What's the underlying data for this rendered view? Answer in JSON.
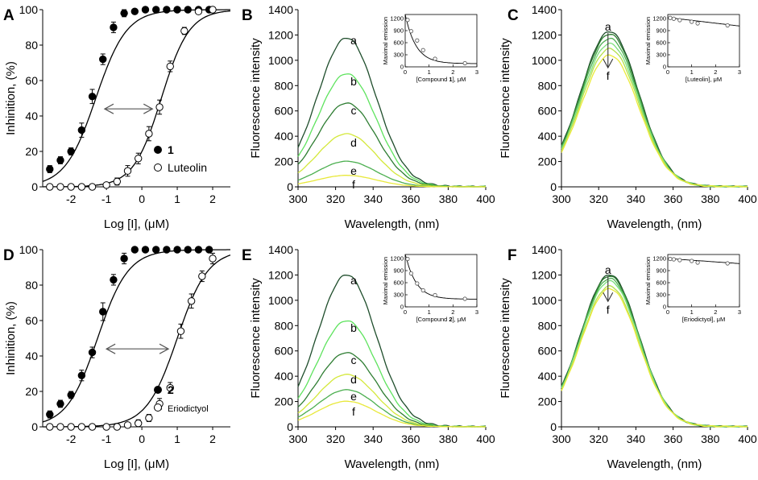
{
  "chart_data": [
    {
      "id": "A",
      "panel_label": "A",
      "type": "scatter",
      "xlabel": "Log [I], (μM)",
      "ylabel": "Inhinition, (%)",
      "xlim": [
        -2.8,
        2.5
      ],
      "ylim": [
        0,
        100
      ],
      "xticks": [
        -2,
        -1,
        0,
        1,
        2
      ],
      "yticks": [
        0,
        20,
        40,
        60,
        80,
        100
      ],
      "series": [
        {
          "name": "1",
          "marker": "filled",
          "ic50": -1.3,
          "hill": 1.0,
          "x": [
            -2.6,
            -2.3,
            -2.0,
            -1.7,
            -1.4,
            -1.1,
            -0.8,
            -0.5,
            -0.2,
            0.1,
            0.4,
            0.7,
            1.0,
            1.3,
            1.6,
            1.9
          ],
          "y": [
            10,
            15,
            20,
            32,
            51,
            72,
            90,
            98,
            99,
            100,
            100,
            100,
            100,
            100,
            100,
            100
          ],
          "err": [
            2,
            2,
            2,
            4,
            4,
            3,
            3,
            2,
            1,
            1,
            1,
            1,
            1,
            1,
            1,
            1
          ]
        },
        {
          "name": "Luteolin",
          "marker": "open",
          "ic50": 0.55,
          "hill": 1.1,
          "x": [
            -2.6,
            -2.3,
            -2.0,
            -1.7,
            -1.4,
            -1.0,
            -0.7,
            -0.4,
            -0.1,
            0.2,
            0.5,
            0.8,
            1.2,
            1.6,
            2.0
          ],
          "y": [
            0,
            0,
            0,
            0,
            0,
            1,
            3,
            9,
            16,
            30,
            45,
            68,
            88,
            99,
            100
          ],
          "err": [
            1,
            1,
            1,
            1,
            1,
            1,
            2,
            3,
            3,
            4,
            4,
            3,
            2,
            1,
            1
          ]
        }
      ],
      "legend": [
        {
          "symbol": "filled",
          "label": "1",
          "bold": true
        },
        {
          "symbol": "open",
          "label": "Luteolin",
          "bold": false
        }
      ]
    },
    {
      "id": "B",
      "panel_label": "B",
      "type": "line",
      "xlabel": "Wavelength, (nm)",
      "ylabel": "Fluorescence intensity",
      "xlim": [
        300,
        400
      ],
      "ylim": [
        0,
        1400
      ],
      "xticks": [
        300,
        320,
        340,
        360,
        380,
        400
      ],
      "yticks": [
        0,
        200,
        400,
        600,
        800,
        1000,
        1200,
        1400
      ],
      "series": [
        {
          "name": "a",
          "peak": 1165,
          "color": "#1e4d2b"
        },
        {
          "name": "b",
          "peak": 885,
          "color": "#5ee35e"
        },
        {
          "name": "c",
          "peak": 655,
          "color": "#2e7d32"
        },
        {
          "name": "d",
          "peak": 415,
          "color": "#d4e83a"
        },
        {
          "name": "e",
          "peak": 200,
          "color": "#4caf50"
        },
        {
          "name": "f",
          "peak": 90,
          "color": "#e8e83a"
        }
      ],
      "inset": {
        "xlabel": "[Compound 1], μM",
        "ylabel": "Maximal emission",
        "xlim": [
          0,
          3
        ],
        "ylim": [
          0,
          1300
        ],
        "xticks": [
          0,
          1,
          2,
          3
        ],
        "yticks": [
          0,
          300,
          600,
          900,
          1200
        ],
        "x": [
          0.1,
          0.25,
          0.5,
          0.75,
          1.25,
          2.5
        ],
        "y": [
          1165,
          885,
          655,
          415,
          200,
          90
        ]
      }
    },
    {
      "id": "C",
      "panel_label": "C",
      "type": "line",
      "xlabel": "Wavelength, (nm)",
      "ylabel": "Fluorescence intensity",
      "xlim": [
        300,
        400
      ],
      "ylim": [
        0,
        1400
      ],
      "xticks": [
        300,
        320,
        340,
        360,
        380,
        400
      ],
      "yticks": [
        0,
        200,
        400,
        600,
        800,
        1000,
        1200,
        1400
      ],
      "series": [
        {
          "name": "a",
          "peak": 1215,
          "color": "#1e4d2b"
        },
        {
          "name": "",
          "peak": 1195,
          "color": "#2e7d32"
        },
        {
          "name": "",
          "peak": 1160,
          "color": "#4caf50"
        },
        {
          "name": "",
          "peak": 1120,
          "color": "#7be07b"
        },
        {
          "name": "",
          "peak": 1080,
          "color": "#b4e04a"
        },
        {
          "name": "f",
          "peak": 1030,
          "color": "#eaea3a"
        }
      ],
      "inset": {
        "xlabel": "[Luteolin], μM",
        "ylabel": "Maximal emission",
        "xlim": [
          0,
          3
        ],
        "ylim": [
          0,
          1300
        ],
        "xticks": [
          0,
          1,
          2,
          3
        ],
        "yticks": [
          0,
          300,
          600,
          900,
          1200
        ],
        "x": [
          0.1,
          0.25,
          0.5,
          1.0,
          1.25,
          2.5
        ],
        "y": [
          1215,
          1195,
          1160,
          1120,
          1080,
          1030
        ]
      }
    },
    {
      "id": "D",
      "panel_label": "D",
      "type": "scatter",
      "xlabel": "Log [I], (μM)",
      "ylabel": "Inhinition, (%)",
      "xlim": [
        -2.8,
        2.5
      ],
      "ylim": [
        0,
        100
      ],
      "xticks": [
        -2,
        -1,
        0,
        1,
        2
      ],
      "yticks": [
        0,
        20,
        40,
        60,
        80,
        100
      ],
      "series": [
        {
          "name": "2",
          "marker": "filled",
          "ic50": -1.25,
          "hill": 1.0,
          "x": [
            -2.6,
            -2.3,
            -2.0,
            -1.7,
            -1.4,
            -1.1,
            -0.8,
            -0.5,
            -0.2,
            0.1,
            0.4,
            0.7,
            1.0,
            1.3,
            1.6,
            1.9
          ],
          "y": [
            7,
            13,
            18,
            29,
            42,
            65,
            83,
            95,
            100,
            100,
            100,
            100,
            100,
            100,
            100,
            100
          ],
          "err": [
            2,
            2,
            2,
            3,
            3,
            5,
            3,
            3,
            1,
            1,
            1,
            1,
            1,
            1,
            1,
            1
          ]
        },
        {
          "name": "Eriodictyol",
          "marker": "open",
          "ic50": 1.0,
          "hill": 1.0,
          "x": [
            -2.6,
            -2.3,
            -2.0,
            -1.7,
            -1.4,
            -1.0,
            -0.7,
            -0.4,
            -0.1,
            0.2,
            0.5,
            0.8,
            1.1,
            1.4,
            1.7,
            2.0
          ],
          "y": [
            0,
            0,
            0,
            0,
            0,
            0,
            0,
            1,
            2,
            5,
            13,
            22,
            54,
            71,
            85,
            95
          ],
          "err": [
            1,
            1,
            1,
            1,
            1,
            1,
            1,
            1,
            2,
            2,
            3,
            3,
            4,
            4,
            3,
            3
          ]
        }
      ],
      "legend": [
        {
          "symbol": "filled",
          "label": "2",
          "bold": true
        },
        {
          "symbol": "open",
          "label": "Eriodictyol",
          "bold": false
        }
      ]
    },
    {
      "id": "E",
      "panel_label": "E",
      "type": "line",
      "xlabel": "Wavelength, (nm)",
      "ylabel": "Fluorescence intensity",
      "xlim": [
        300,
        400
      ],
      "ylim": [
        0,
        1400
      ],
      "xticks": [
        300,
        320,
        340,
        360,
        380,
        400
      ],
      "yticks": [
        0,
        200,
        400,
        600,
        800,
        1000,
        1200,
        1400
      ],
      "series": [
        {
          "name": "a",
          "peak": 1190,
          "color": "#1e4d2b"
        },
        {
          "name": "b",
          "peak": 830,
          "color": "#5ee35e"
        },
        {
          "name": "c",
          "peak": 580,
          "color": "#2e7d32"
        },
        {
          "name": "d",
          "peak": 410,
          "color": "#d4e83a"
        },
        {
          "name": "e",
          "peak": 290,
          "color": "#4caf50"
        },
        {
          "name": "f",
          "peak": 200,
          "color": "#e8e83a"
        }
      ],
      "inset": {
        "xlabel": "[Compound 2], μM",
        "ylabel": "Maximal emission",
        "xlim": [
          0,
          3
        ],
        "ylim": [
          0,
          1300
        ],
        "xticks": [
          0,
          1,
          2,
          3
        ],
        "yticks": [
          0,
          300,
          600,
          900,
          1200
        ],
        "x": [
          0.1,
          0.25,
          0.5,
          0.75,
          1.25,
          2.5
        ],
        "y": [
          1190,
          830,
          580,
          410,
          290,
          200
        ]
      }
    },
    {
      "id": "F",
      "panel_label": "F",
      "type": "line",
      "xlabel": "Wavelength, (nm)",
      "ylabel": "Fluorescence intensity",
      "xlim": [
        300,
        400
      ],
      "ylim": [
        0,
        1400
      ],
      "xticks": [
        300,
        320,
        340,
        360,
        380,
        400
      ],
      "yticks": [
        0,
        200,
        400,
        600,
        800,
        1000,
        1200,
        1400
      ],
      "series": [
        {
          "name": "a",
          "peak": 1190,
          "color": "#1e4d2b"
        },
        {
          "name": "",
          "peak": 1180,
          "color": "#2e7d32"
        },
        {
          "name": "",
          "peak": 1160,
          "color": "#4caf50"
        },
        {
          "name": "",
          "peak": 1140,
          "color": "#7be07b"
        },
        {
          "name": "",
          "peak": 1100,
          "color": "#b4e04a"
        },
        {
          "name": "f",
          "peak": 1080,
          "color": "#eaea3a"
        }
      ],
      "inset": {
        "xlabel": "[Eriodictyol], μM",
        "ylabel": "Maximal emission",
        "xlim": [
          0,
          3
        ],
        "ylim": [
          0,
          1300
        ],
        "xticks": [
          0,
          1,
          2,
          3
        ],
        "yticks": [
          0,
          300,
          600,
          900,
          1200
        ],
        "x": [
          0.1,
          0.25,
          0.5,
          1.0,
          1.25,
          2.5
        ],
        "y": [
          1190,
          1180,
          1160,
          1140,
          1100,
          1080
        ]
      }
    }
  ]
}
